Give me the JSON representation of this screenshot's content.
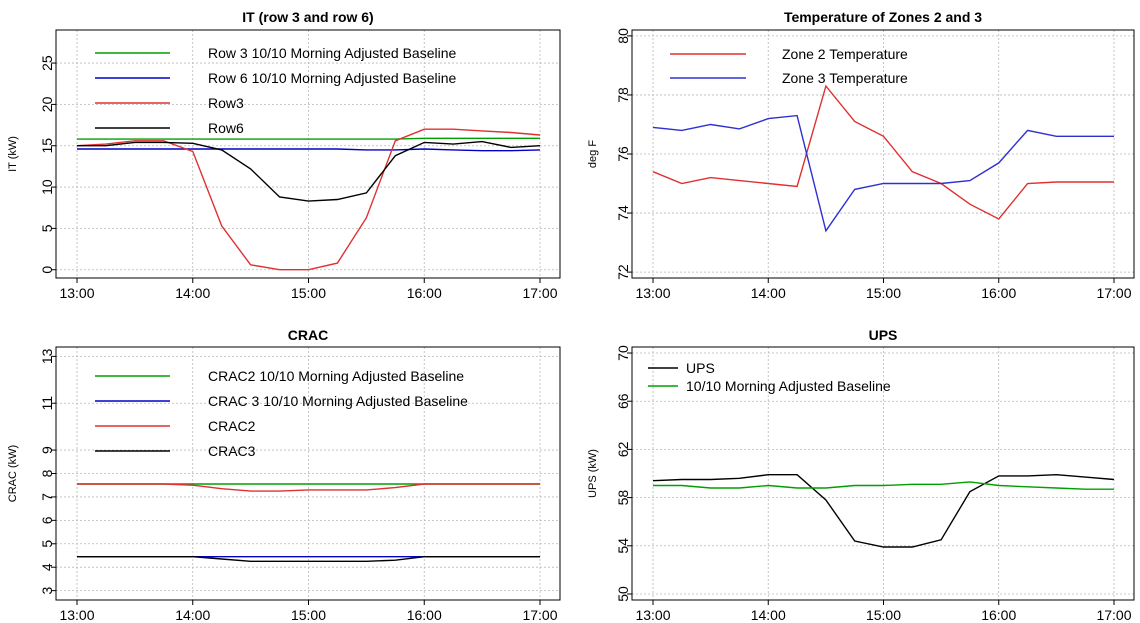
{
  "chart_data": [
    {
      "type": "line",
      "title": "IT (row 3 and row 6)",
      "ylabel": "IT (kW)",
      "xlabel": "",
      "ylim": [
        -1,
        29
      ],
      "yticks": [
        0,
        5,
        10,
        15,
        20,
        25
      ],
      "x_ticks": [
        "13:00",
        "14:00",
        "15:00",
        "16:00",
        "17:00"
      ],
      "x": [
        "13:00",
        "13:15",
        "13:30",
        "13:45",
        "14:00",
        "14:15",
        "14:30",
        "14:45",
        "15:00",
        "15:15",
        "15:30",
        "15:45",
        "16:00",
        "16:15",
        "16:30",
        "16:45",
        "17:00"
      ],
      "legend": "top-left",
      "grid": true,
      "series": [
        {
          "name": "Row 3 10/10 Morning Adjusted Baseline",
          "color": "#00a000",
          "values": [
            15.8,
            15.8,
            15.8,
            15.8,
            15.8,
            15.8,
            15.8,
            15.8,
            15.8,
            15.8,
            15.8,
            15.8,
            15.9,
            15.9,
            15.9,
            15.9,
            15.9
          ]
        },
        {
          "name": "Row 6 10/10 Morning Adjusted Baseline",
          "color": "#0000c8",
          "values": [
            14.6,
            14.6,
            14.6,
            14.6,
            14.6,
            14.6,
            14.6,
            14.6,
            14.6,
            14.6,
            14.5,
            14.5,
            14.6,
            14.5,
            14.4,
            14.4,
            14.5
          ]
        },
        {
          "name": "Row3",
          "color": "#e03030",
          "values": [
            15.0,
            15.2,
            15.6,
            15.6,
            14.3,
            5.3,
            0.6,
            0.0,
            0.0,
            0.8,
            6.3,
            15.6,
            17.0,
            17.0,
            16.8,
            16.6,
            16.3
          ]
        },
        {
          "name": "Row6",
          "color": "#000000",
          "values": [
            15.0,
            15.0,
            15.4,
            15.4,
            15.3,
            14.5,
            12.2,
            8.8,
            8.3,
            8.5,
            9.3,
            13.8,
            15.4,
            15.2,
            15.5,
            14.8,
            15.0
          ]
        }
      ]
    },
    {
      "type": "line",
      "title": "Temperature of Zones 2 and 3",
      "ylabel": "deg F",
      "xlabel": "",
      "ylim": [
        71.8,
        80.2
      ],
      "yticks": [
        72,
        74,
        76,
        78,
        80
      ],
      "x_ticks": [
        "13:00",
        "14:00",
        "15:00",
        "16:00",
        "17:00"
      ],
      "x": [
        "13:00",
        "13:15",
        "13:30",
        "13:45",
        "14:00",
        "14:15",
        "14:30",
        "14:45",
        "15:00",
        "15:15",
        "15:30",
        "15:45",
        "16:00",
        "16:15",
        "16:30",
        "16:45",
        "17:00"
      ],
      "legend": "top-left",
      "grid": true,
      "series": [
        {
          "name": "Zone 2 Temperature",
          "color": "#e03030",
          "values": [
            75.4,
            75.0,
            75.2,
            75.1,
            75.0,
            74.9,
            78.3,
            77.1,
            76.6,
            75.4,
            75.0,
            74.3,
            73.8,
            75.0,
            75.05,
            75.05,
            75.05
          ]
        },
        {
          "name": "Zone 3 Temperature",
          "color": "#3030d0",
          "values": [
            76.9,
            76.8,
            77.0,
            76.85,
            77.2,
            77.3,
            73.4,
            74.8,
            75.0,
            75.0,
            75.0,
            75.1,
            75.7,
            76.8,
            76.6,
            76.6,
            76.6
          ]
        }
      ]
    },
    {
      "type": "line",
      "title": "CRAC",
      "ylabel": "CRAC (kW)",
      "xlabel": "",
      "ylim": [
        2.6,
        13.4
      ],
      "yticks": [
        3,
        4,
        5,
        6,
        7,
        8,
        9,
        11,
        13
      ],
      "x_ticks": [
        "13:00",
        "14:00",
        "15:00",
        "16:00",
        "17:00"
      ],
      "x": [
        "13:00",
        "13:15",
        "13:30",
        "13:45",
        "14:00",
        "14:15",
        "14:30",
        "14:45",
        "15:00",
        "15:15",
        "15:30",
        "15:45",
        "16:00",
        "16:15",
        "16:30",
        "16:45",
        "17:00"
      ],
      "legend": "top-left",
      "grid": true,
      "series": [
        {
          "name": "CRAC2 10/10 Morning Adjusted Baseline",
          "color": "#00a000",
          "values": [
            7.55,
            7.55,
            7.55,
            7.55,
            7.55,
            7.55,
            7.55,
            7.55,
            7.55,
            7.55,
            7.55,
            7.55,
            7.55,
            7.55,
            7.55,
            7.55,
            7.55
          ]
        },
        {
          "name": "CRAC 3 10/10 Morning Adjusted Baseline",
          "color": "#0000c8",
          "values": [
            4.45,
            4.45,
            4.45,
            4.45,
            4.45,
            4.45,
            4.45,
            4.45,
            4.45,
            4.45,
            4.45,
            4.45,
            4.45,
            4.45,
            4.45,
            4.45,
            4.45
          ]
        },
        {
          "name": "CRAC2",
          "color": "#e03030",
          "values": [
            7.55,
            7.55,
            7.55,
            7.55,
            7.5,
            7.35,
            7.25,
            7.25,
            7.3,
            7.3,
            7.3,
            7.4,
            7.55,
            7.55,
            7.55,
            7.55,
            7.55
          ]
        },
        {
          "name": "CRAC3",
          "color": "#000000",
          "values": [
            4.45,
            4.45,
            4.45,
            4.45,
            4.45,
            4.35,
            4.25,
            4.25,
            4.25,
            4.25,
            4.25,
            4.3,
            4.45,
            4.45,
            4.45,
            4.45,
            4.45
          ]
        }
      ]
    },
    {
      "type": "line",
      "title": "UPS",
      "ylabel": "UPS (kW)",
      "xlabel": "",
      "ylim": [
        49.5,
        70.5
      ],
      "yticks": [
        50,
        54,
        58,
        62,
        66,
        70
      ],
      "x_ticks": [
        "13:00",
        "14:00",
        "15:00",
        "16:00",
        "17:00"
      ],
      "x": [
        "13:00",
        "13:15",
        "13:30",
        "13:45",
        "14:00",
        "14:15",
        "14:30",
        "14:45",
        "15:00",
        "15:15",
        "15:30",
        "15:45",
        "16:00",
        "16:15",
        "16:30",
        "16:45",
        "17:00"
      ],
      "legend": "top-left",
      "grid": true,
      "series": [
        {
          "name": "UPS",
          "color": "#000000",
          "values": [
            59.4,
            59.5,
            59.5,
            59.6,
            59.9,
            59.9,
            57.8,
            54.4,
            53.9,
            53.9,
            54.5,
            58.5,
            59.8,
            59.8,
            59.9,
            59.7,
            59.5
          ]
        },
        {
          "name": "10/10 Morning Adjusted Baseline",
          "color": "#00a000",
          "values": [
            59.0,
            59.0,
            58.8,
            58.8,
            59.0,
            58.8,
            58.8,
            59.0,
            59.0,
            59.1,
            59.1,
            59.3,
            59.0,
            58.9,
            58.8,
            58.7,
            58.7
          ]
        }
      ]
    }
  ]
}
